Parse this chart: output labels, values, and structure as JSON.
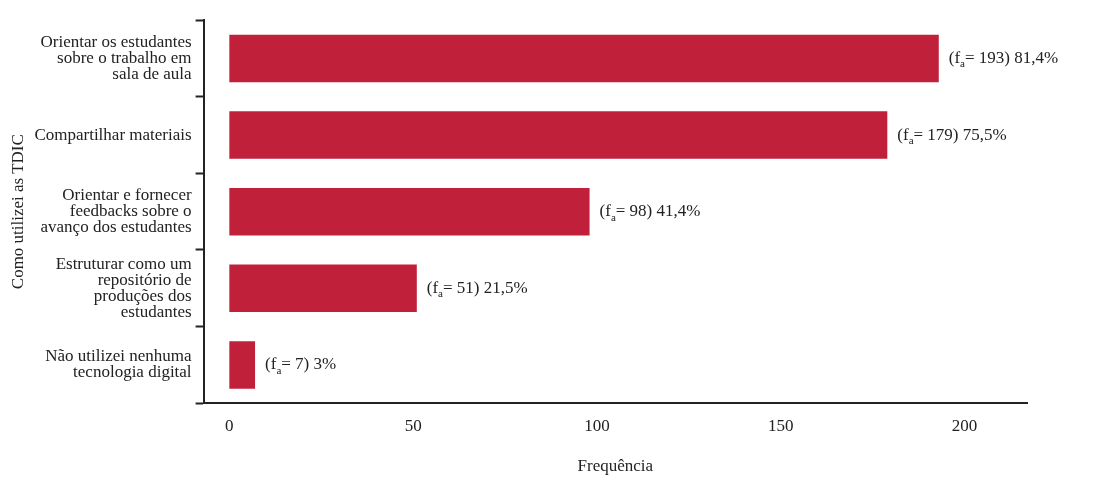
{
  "chart_data": {
    "type": "bar",
    "orientation": "horizontal",
    "xlabel": "Frequência",
    "ylabel": "Como utilizei as TDIC",
    "categories": [
      "Orientar os estudantes sobre o trabalho em sala de aula",
      "Compartilhar materiais",
      "Orientar e fornecer feedbacks sobre o avanço dos estudantes",
      "Estruturar como um repositório de produções dos estudantes",
      "Não utilizei nenhuma tecnologia digital"
    ],
    "values": [
      193,
      179,
      98,
      51,
      7
    ],
    "value_labels": [
      "(f$_{a}$= 193) 81,4%",
      "(f$_{a}$= 179) 75,5%",
      "(f$_{a}$= 98) 41,4%",
      "(f$_{a}$= 51) 21,5%",
      "(f$_{a}$= 7) 3%"
    ],
    "color": "#c1203b",
    "xlim": [
      -7,
      217
    ],
    "xticks": [
      0,
      50,
      100,
      150,
      200
    ],
    "grid": false,
    "legend": false
  }
}
